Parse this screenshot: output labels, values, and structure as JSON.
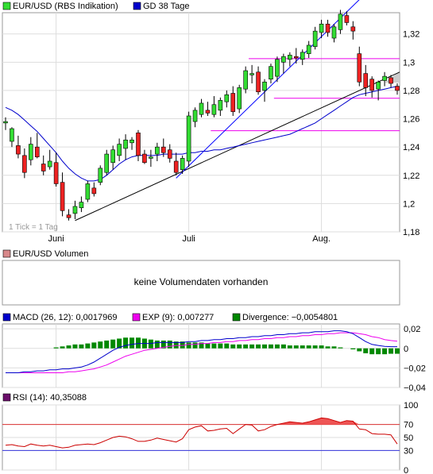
{
  "colors": {
    "up": "#33dd33",
    "down": "#ee2222",
    "gd": "#0000cc",
    "trend": "#0000ff",
    "pink": "#ee00ee",
    "macd": "#0000cc",
    "exp": "#ee00ee",
    "div": "#008800",
    "rsi": "#cc0000",
    "rsi_legend": "#6b0f6b",
    "vol_legend": "#d8888a"
  },
  "price_panel": {
    "legend_1": "EUR/USD (RBS Indikation)",
    "legend_2": "GD 38 Tage",
    "tick_note": "1 Tick = 1 Tag",
    "y_ticks": [
      "1,32",
      "1,3",
      "1,28",
      "1,26",
      "1,24",
      "1,22",
      "1,2",
      "1,18"
    ],
    "x_ticks": [
      "Juni",
      "Juli",
      "Aug."
    ]
  },
  "volume_panel": {
    "legend": "EUR/USD Volumen",
    "message": "keine Volumendaten vorhanden"
  },
  "macd_panel": {
    "legend_macd": "MACD (26, 12): 0,0017969",
    "legend_exp": "EXP (9): 0,007277",
    "legend_div": "Divergence: −0,0054801",
    "y_ticks": [
      "0,02",
      "0",
      "−0,02",
      "−0,04"
    ]
  },
  "rsi_panel": {
    "legend": "RSI (14): 40,35088",
    "y_ticks": [
      "100",
      "70",
      "50",
      "30",
      "0"
    ]
  },
  "chart_data": [
    {
      "type": "candlestick",
      "title": "EUR/USD (RBS Indikation)",
      "ylim": [
        1.18,
        1.335
      ],
      "x_labels": [
        "Juni",
        "Juli",
        "Aug."
      ],
      "ohlc": [
        [
          1.257,
          1.261,
          1.252,
          1.258
        ],
        [
          1.244,
          1.254,
          1.24,
          1.253
        ],
        [
          1.241,
          1.248,
          1.232,
          1.235
        ],
        [
          1.234,
          1.239,
          1.218,
          1.222
        ],
        [
          1.231,
          1.247,
          1.227,
          1.242
        ],
        [
          1.24,
          1.25,
          1.232,
          1.233
        ],
        [
          1.228,
          1.234,
          1.22,
          1.223
        ],
        [
          1.226,
          1.238,
          1.224,
          1.23
        ],
        [
          1.229,
          1.236,
          1.212,
          1.214
        ],
        [
          1.215,
          1.222,
          1.191,
          1.195
        ],
        [
          1.192,
          1.196,
          1.188,
          1.19
        ],
        [
          1.193,
          1.202,
          1.189,
          1.198
        ],
        [
          1.197,
          1.205,
          1.194,
          1.201
        ],
        [
          1.203,
          1.216,
          1.201,
          1.214
        ],
        [
          1.211,
          1.215,
          1.205,
          1.207
        ],
        [
          1.215,
          1.227,
          1.213,
          1.225
        ],
        [
          1.222,
          1.238,
          1.22,
          1.235
        ],
        [
          1.229,
          1.241,
          1.224,
          1.238
        ],
        [
          1.234,
          1.246,
          1.23,
          1.242
        ],
        [
          1.239,
          1.249,
          1.231,
          1.245
        ],
        [
          1.243,
          1.247,
          1.238,
          1.245
        ],
        [
          1.25,
          1.252,
          1.23,
          1.234
        ],
        [
          1.235,
          1.238,
          1.228,
          1.229
        ],
        [
          1.232,
          1.238,
          1.226,
          1.233
        ],
        [
          1.235,
          1.243,
          1.23,
          1.24
        ],
        [
          1.24,
          1.246,
          1.233,
          1.236
        ],
        [
          1.238,
          1.242,
          1.229,
          1.232
        ],
        [
          1.23,
          1.236,
          1.22,
          1.222
        ],
        [
          1.224,
          1.234,
          1.221,
          1.232
        ],
        [
          1.23,
          1.265,
          1.226,
          1.262
        ],
        [
          1.258,
          1.268,
          1.254,
          1.266
        ],
        [
          1.263,
          1.274,
          1.261,
          1.271
        ],
        [
          1.266,
          1.272,
          1.262,
          1.264
        ],
        [
          1.263,
          1.276,
          1.261,
          1.27
        ],
        [
          1.266,
          1.275,
          1.262,
          1.273
        ],
        [
          1.272,
          1.28,
          1.268,
          1.277
        ],
        [
          1.278,
          1.283,
          1.262,
          1.265
        ],
        [
          1.267,
          1.284,
          1.264,
          1.282
        ],
        [
          1.281,
          1.297,
          1.278,
          1.294
        ],
        [
          1.291,
          1.298,
          1.285,
          1.292
        ],
        [
          1.293,
          1.297,
          1.277,
          1.279
        ],
        [
          1.28,
          1.288,
          1.272,
          1.286
        ],
        [
          1.288,
          1.299,
          1.285,
          1.297
        ],
        [
          1.29,
          1.304,
          1.286,
          1.302
        ],
        [
          1.3,
          1.306,
          1.292,
          1.304
        ],
        [
          1.302,
          1.307,
          1.297,
          1.305
        ],
        [
          1.304,
          1.31,
          1.299,
          1.303
        ],
        [
          1.302,
          1.309,
          1.298,
          1.307
        ],
        [
          1.306,
          1.315,
          1.303,
          1.312
        ],
        [
          1.311,
          1.325,
          1.309,
          1.322
        ],
        [
          1.321,
          1.33,
          1.317,
          1.327
        ],
        [
          1.327,
          1.33,
          1.318,
          1.321
        ],
        [
          1.317,
          1.327,
          1.314,
          1.325
        ],
        [
          1.323,
          1.337,
          1.32,
          1.334
        ],
        [
          1.333,
          1.336,
          1.326,
          1.328
        ],
        [
          1.325,
          1.329,
          1.316,
          1.322
        ],
        [
          1.306,
          1.311,
          1.283,
          1.286
        ],
        [
          1.292,
          1.298,
          1.276,
          1.282
        ],
        [
          1.288,
          1.29,
          1.275,
          1.28
        ],
        [
          1.281,
          1.287,
          1.273,
          1.286
        ],
        [
          1.287,
          1.293,
          1.283,
          1.29
        ],
        [
          1.289,
          1.291,
          1.282,
          1.285
        ],
        [
          1.283,
          1.285,
          1.277,
          1.28
        ]
      ],
      "gd38": [
        1.268,
        1.266,
        1.263,
        1.259,
        1.255,
        1.251,
        1.246,
        1.241,
        1.236,
        1.23,
        1.225,
        1.221,
        1.218,
        1.216,
        1.216,
        1.217,
        1.22,
        1.224,
        1.228,
        1.231,
        1.233,
        1.234,
        1.234,
        1.234,
        1.234,
        1.235,
        1.235,
        1.235,
        1.235,
        1.236,
        1.236,
        1.237,
        1.237,
        1.238,
        1.238,
        1.239,
        1.24,
        1.241,
        1.242,
        1.243,
        1.244,
        1.245,
        1.246,
        1.247,
        1.248,
        1.249,
        1.251,
        1.253,
        1.255,
        1.257,
        1.26,
        1.263,
        1.266,
        1.269,
        1.272,
        1.275,
        1.277,
        1.278,
        1.279,
        1.28,
        1.281,
        1.282,
        1.283
      ]
    },
    {
      "type": "line",
      "title": "MACD (26, 12)",
      "ylim": [
        -0.04,
        0.025
      ],
      "series": [
        {
          "name": "MACD (26, 12)",
          "values": [
            -0.025,
            -0.025,
            -0.025,
            -0.024,
            -0.024,
            -0.023,
            -0.023,
            -0.022,
            -0.022,
            -0.021,
            -0.021,
            -0.02,
            -0.019,
            -0.017,
            -0.014,
            -0.01,
            -0.006,
            -0.002,
            0.001,
            0.003,
            0.004,
            0.005,
            0.005,
            0.005,
            0.006,
            0.006,
            0.006,
            0.006,
            0.006,
            0.007,
            0.007,
            0.008,
            0.008,
            0.009,
            0.009,
            0.01,
            0.01,
            0.011,
            0.011,
            0.012,
            0.012,
            0.013,
            0.013,
            0.014,
            0.014,
            0.015,
            0.015,
            0.016,
            0.016,
            0.017,
            0.017,
            0.017,
            0.018,
            0.018,
            0.017,
            0.015,
            0.011,
            0.007,
            0.004,
            0.003,
            0.002,
            0.0018,
            0.0018
          ]
        },
        {
          "name": "EXP (9)",
          "values": [
            -0.025,
            -0.025,
            -0.025,
            -0.025,
            -0.025,
            -0.025,
            -0.025,
            -0.025,
            -0.025,
            -0.025,
            -0.024,
            -0.024,
            -0.023,
            -0.022,
            -0.021,
            -0.019,
            -0.017,
            -0.014,
            -0.011,
            -0.008,
            -0.006,
            -0.004,
            -0.002,
            -0.001,
            0.0,
            0.001,
            0.002,
            0.003,
            0.003,
            0.004,
            0.004,
            0.005,
            0.005,
            0.006,
            0.006,
            0.007,
            0.007,
            0.008,
            0.008,
            0.009,
            0.009,
            0.01,
            0.01,
            0.011,
            0.011,
            0.012,
            0.012,
            0.013,
            0.013,
            0.014,
            0.014,
            0.015,
            0.015,
            0.016,
            0.016,
            0.016,
            0.015,
            0.014,
            0.012,
            0.011,
            0.009,
            0.008,
            0.0073
          ]
        },
        {
          "name": "Divergence",
          "values": [
            0,
            0,
            0,
            0,
            0,
            0,
            0,
            0,
            0.001,
            0.002,
            0.003,
            0.004,
            0.004,
            0.005,
            0.006,
            0.007,
            0.008,
            0.009,
            0.01,
            0.011,
            0.011,
            0.011,
            0.01,
            0.009,
            0.008,
            0.008,
            0.008,
            0.007,
            0.007,
            0.006,
            0.006,
            0.006,
            0.005,
            0.005,
            0.005,
            0.005,
            0.004,
            0.004,
            0.004,
            0.004,
            0.004,
            0.004,
            0.004,
            0.004,
            0.004,
            0.003,
            0.003,
            0.003,
            0.003,
            0.003,
            0.003,
            0.002,
            0.002,
            0.001,
            0.0,
            -0.001,
            -0.003,
            -0.005,
            -0.006,
            -0.006,
            -0.006,
            -0.0055,
            -0.0055
          ]
        }
      ]
    },
    {
      "type": "line",
      "title": "RSI (14)",
      "ylim": [
        0,
        100
      ],
      "series": [
        {
          "name": "RSI (14)",
          "values": [
            38,
            39,
            37,
            36,
            40,
            38,
            37,
            38,
            36,
            34,
            35,
            38,
            39,
            40,
            39,
            42,
            46,
            50,
            52,
            51,
            48,
            44,
            44,
            46,
            49,
            47,
            45,
            43,
            48,
            62,
            66,
            68,
            60,
            61,
            63,
            64,
            56,
            63,
            70,
            69,
            60,
            62,
            67,
            70,
            72,
            74,
            73,
            72,
            74,
            77,
            80,
            79,
            76,
            73,
            76,
            75,
            63,
            62,
            56,
            55,
            55,
            54,
            40
          ]
        }
      ]
    }
  ]
}
